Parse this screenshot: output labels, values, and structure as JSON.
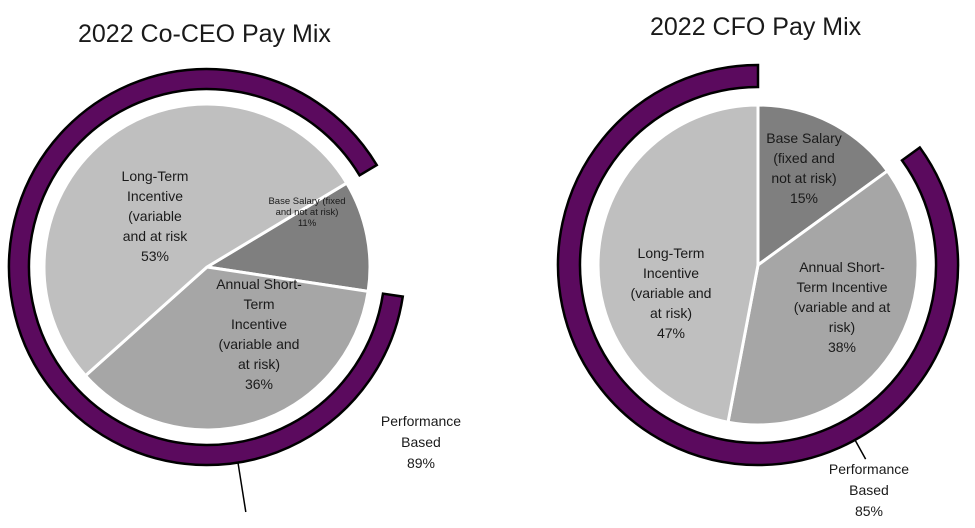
{
  "chart_data": [
    {
      "type": "pie",
      "title": "2022 Co-CEO Pay Mix",
      "slices": [
        {
          "label": [
            "Base Salary (fixed",
            "and not at risk)"
          ],
          "value": 11,
          "value_label": "11%",
          "color": "#7f7f7f"
        },
        {
          "label": [
            "Annual Short-",
            "Term",
            "Incentive",
            "(variable and",
            "at risk)"
          ],
          "value": 36,
          "value_label": "36%",
          "color": "#a6a6a6"
        },
        {
          "label": [
            "Long-Term",
            "Incentive",
            "(variable",
            "and at risk"
          ],
          "value": 53,
          "value_label": "53%",
          "color": "#bfbfbf"
        }
      ],
      "ring": {
        "label": [
          "Performance",
          "Based"
        ],
        "value": 89,
        "value_label": "89%",
        "color": "#5b0a5e"
      }
    },
    {
      "type": "pie",
      "title": "2022 CFO Pay Mix",
      "slices": [
        {
          "label": [
            "Base Salary",
            "(fixed and",
            "not at risk)"
          ],
          "value": 15,
          "value_label": "15%",
          "color": "#7f7f7f"
        },
        {
          "label": [
            "Annual Short-",
            "Term Incentive",
            "(variable and at",
            "risk)"
          ],
          "value": 38,
          "value_label": "38%",
          "color": "#a6a6a6"
        },
        {
          "label": [
            "Long-Term",
            "Incentive",
            "(variable and",
            "at risk)"
          ],
          "value": 47,
          "value_label": "47%",
          "color": "#bfbfbf"
        }
      ],
      "ring": {
        "label": [
          "Performance",
          "Based"
        ],
        "value": 85,
        "value_label": "85%",
        "color": "#5b0a5e"
      }
    }
  ]
}
